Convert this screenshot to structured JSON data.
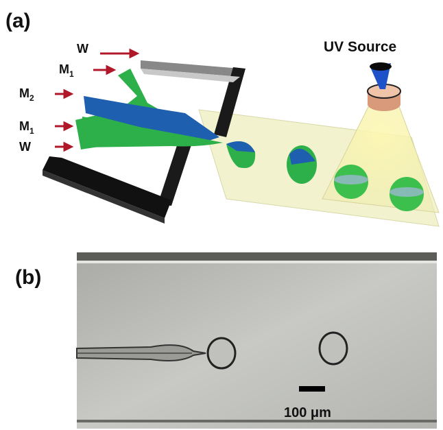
{
  "panel_a": {
    "label": "(a)",
    "inlets": [
      {
        "main": "W"
      },
      {
        "main": "M",
        "sub": "1"
      },
      {
        "main": "M",
        "sub": "2"
      },
      {
        "main": "M",
        "sub": "1"
      },
      {
        "main": "W"
      }
    ],
    "uv_label": "UV Source"
  },
  "panel_b": {
    "label": "(b)",
    "scale_bar": "100 μm"
  }
}
